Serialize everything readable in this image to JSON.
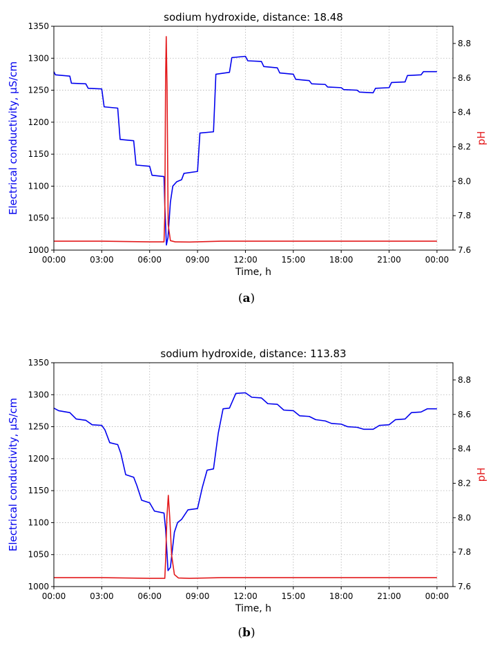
{
  "colors": {
    "ec": "#0000ee",
    "ph": "#e31a1c",
    "grid": "#b0b0b0",
    "axis": "#000000"
  },
  "chart_data": [
    {
      "type": "line",
      "title": "sodium hydroxide, distance: 18.48",
      "caption_label": "a",
      "xlabel": "Time, h",
      "ylabel_left": "Electrical conductivity, μS/cm",
      "ylabel_right": "pH",
      "xlim": [
        0,
        25
      ],
      "ylim_left": [
        1000,
        1350
      ],
      "ylim_right": [
        7.6,
        8.9
      ],
      "x_tick_values": [
        0,
        3,
        6,
        9,
        12,
        15,
        18,
        21,
        24
      ],
      "x_tick_labels": [
        "00:00",
        "03:00",
        "06:00",
        "09:00",
        "12:00",
        "15:00",
        "18:00",
        "21:00",
        "00:00"
      ],
      "y_left_ticks": [
        1000,
        1050,
        1100,
        1150,
        1200,
        1250,
        1300,
        1350
      ],
      "y_right_ticks": [
        "7.6",
        "7.8",
        "8.0",
        "8.2",
        "8.4",
        "8.6",
        "8.8"
      ],
      "grid": true,
      "series": [
        {
          "axis": "left",
          "color": "#0000ee",
          "points": [
            [
              0,
              1279
            ],
            [
              0.1,
              1274
            ],
            [
              1,
              1272
            ],
            [
              1.1,
              1261
            ],
            [
              2,
              1260
            ],
            [
              2.15,
              1253
            ],
            [
              3,
              1252
            ],
            [
              3.15,
              1224
            ],
            [
              4,
              1222
            ],
            [
              4.15,
              1173
            ],
            [
              5,
              1171
            ],
            [
              5.15,
              1133
            ],
            [
              6,
              1131
            ],
            [
              6.15,
              1117
            ],
            [
              6.9,
              1115
            ],
            [
              6.95,
              1070
            ],
            [
              7.05,
              1008
            ],
            [
              7.15,
              1020
            ],
            [
              7.3,
              1075
            ],
            [
              7.45,
              1100
            ],
            [
              7.7,
              1107
            ],
            [
              8,
              1110
            ],
            [
              8.15,
              1120
            ],
            [
              9,
              1123
            ],
            [
              9.15,
              1183
            ],
            [
              10,
              1185
            ],
            [
              10.15,
              1275
            ],
            [
              11,
              1278
            ],
            [
              11.15,
              1301
            ],
            [
              12,
              1303
            ],
            [
              12.15,
              1296
            ],
            [
              13,
              1295
            ],
            [
              13.15,
              1287
            ],
            [
              14,
              1285
            ],
            [
              14.15,
              1277
            ],
            [
              15,
              1275
            ],
            [
              15.15,
              1267
            ],
            [
              16,
              1265
            ],
            [
              16.15,
              1260
            ],
            [
              17,
              1259
            ],
            [
              17.15,
              1255
            ],
            [
              18,
              1254
            ],
            [
              18.15,
              1251
            ],
            [
              19,
              1250
            ],
            [
              19.15,
              1247
            ],
            [
              20,
              1246
            ],
            [
              20.15,
              1253
            ],
            [
              21,
              1254
            ],
            [
              21.15,
              1262
            ],
            [
              22,
              1263
            ],
            [
              22.15,
              1273
            ],
            [
              23,
              1274
            ],
            [
              23.15,
              1279
            ],
            [
              24,
              1279
            ]
          ]
        },
        {
          "axis": "right",
          "color": "#e31a1c",
          "points": [
            [
              0,
              7.652
            ],
            [
              3,
              7.652
            ],
            [
              6,
              7.648
            ],
            [
              6.9,
              7.648
            ],
            [
              6.95,
              7.8
            ],
            [
              7.0,
              8.6
            ],
            [
              7.04,
              8.84
            ],
            [
              7.09,
              8.55
            ],
            [
              7.16,
              7.75
            ],
            [
              7.3,
              7.655
            ],
            [
              7.6,
              7.648
            ],
            [
              8.5,
              7.647
            ],
            [
              10.5,
              7.652
            ],
            [
              24,
              7.652
            ]
          ]
        }
      ]
    },
    {
      "type": "line",
      "title": "sodium hydroxide, distance: 113.83",
      "caption_label": "b",
      "xlabel": "Time, h",
      "ylabel_left": "Electrical conductivity, μS/cm",
      "ylabel_right": "pH",
      "xlim": [
        0,
        25
      ],
      "ylim_left": [
        1000,
        1350
      ],
      "ylim_right": [
        7.6,
        8.9
      ],
      "x_tick_values": [
        0,
        3,
        6,
        9,
        12,
        15,
        18,
        21,
        24
      ],
      "x_tick_labels": [
        "00:00",
        "03:00",
        "06:00",
        "09:00",
        "12:00",
        "15:00",
        "18:00",
        "21:00",
        "00:00"
      ],
      "y_left_ticks": [
        1000,
        1050,
        1100,
        1150,
        1200,
        1250,
        1300,
        1350
      ],
      "y_right_ticks": [
        "7.6",
        "7.8",
        "8.0",
        "8.2",
        "8.4",
        "8.6",
        "8.8"
      ],
      "grid": true,
      "series": [
        {
          "axis": "left",
          "color": "#0000ee",
          "points": [
            [
              0,
              1279
            ],
            [
              0.3,
              1275
            ],
            [
              1,
              1272
            ],
            [
              1.4,
              1262
            ],
            [
              2,
              1260
            ],
            [
              2.4,
              1253
            ],
            [
              3,
              1252
            ],
            [
              3.2,
              1245
            ],
            [
              3.5,
              1225
            ],
            [
              4,
              1222
            ],
            [
              4.2,
              1208
            ],
            [
              4.5,
              1175
            ],
            [
              5,
              1171
            ],
            [
              5.2,
              1158
            ],
            [
              5.5,
              1135
            ],
            [
              6,
              1131
            ],
            [
              6.3,
              1118
            ],
            [
              6.9,
              1115
            ],
            [
              7.0,
              1090
            ],
            [
              7.15,
              1025
            ],
            [
              7.3,
              1030
            ],
            [
              7.55,
              1085
            ],
            [
              7.75,
              1100
            ],
            [
              8,
              1105
            ],
            [
              8.4,
              1120
            ],
            [
              9,
              1122
            ],
            [
              9.3,
              1155
            ],
            [
              9.6,
              1182
            ],
            [
              10,
              1184
            ],
            [
              10.3,
              1240
            ],
            [
              10.6,
              1278
            ],
            [
              11,
              1279
            ],
            [
              11.4,
              1302
            ],
            [
              12,
              1303
            ],
            [
              12.4,
              1296
            ],
            [
              13,
              1295
            ],
            [
              13.4,
              1286
            ],
            [
              14,
              1285
            ],
            [
              14.4,
              1276
            ],
            [
              15,
              1275
            ],
            [
              15.4,
              1267
            ],
            [
              16,
              1266
            ],
            [
              16.4,
              1261
            ],
            [
              17,
              1259
            ],
            [
              17.4,
              1255
            ],
            [
              18,
              1254
            ],
            [
              18.4,
              1250
            ],
            [
              19,
              1249
            ],
            [
              19.4,
              1246
            ],
            [
              20,
              1246
            ],
            [
              20.4,
              1252
            ],
            [
              21,
              1253
            ],
            [
              21.4,
              1261
            ],
            [
              22,
              1262
            ],
            [
              22.4,
              1272
            ],
            [
              23,
              1273
            ],
            [
              23.4,
              1278
            ],
            [
              24,
              1278
            ]
          ]
        },
        {
          "axis": "right",
          "color": "#e31a1c",
          "points": [
            [
              0,
              7.652
            ],
            [
              3,
              7.652
            ],
            [
              6,
              7.648
            ],
            [
              6.95,
              7.648
            ],
            [
              7.0,
              7.75
            ],
            [
              7.08,
              8.0
            ],
            [
              7.17,
              8.13
            ],
            [
              7.26,
              8.0
            ],
            [
              7.38,
              7.78
            ],
            [
              7.55,
              7.67
            ],
            [
              7.8,
              7.65
            ],
            [
              8.5,
              7.648
            ],
            [
              10.5,
              7.652
            ],
            [
              24,
              7.652
            ]
          ]
        }
      ]
    }
  ]
}
